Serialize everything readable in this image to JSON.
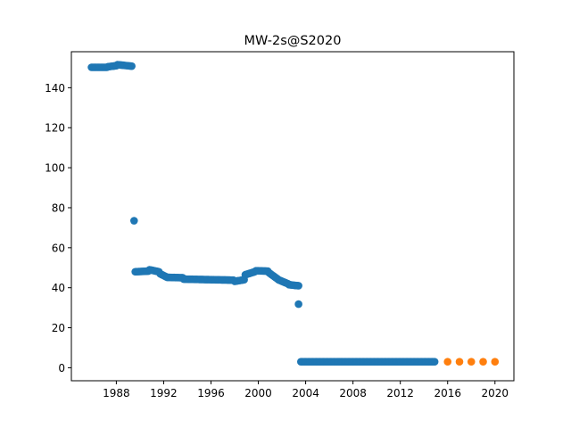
{
  "chart_data": {
    "type": "scatter",
    "title": "MW-2s@S2020",
    "xlabel": "",
    "ylabel": "",
    "xlim": [
      1984.2,
      2021.6
    ],
    "ylim": [
      -6.5,
      158
    ],
    "x_ticks": [
      1988,
      1992,
      1996,
      2000,
      2004,
      2008,
      2012,
      2016,
      2020
    ],
    "y_ticks": [
      0,
      20,
      40,
      60,
      80,
      100,
      120,
      140
    ],
    "grid": false,
    "legend": "none",
    "series": [
      {
        "color": "#1f77b4",
        "segments": [
          {
            "x_start": 1985.9,
            "x_end": 1987.2,
            "step": 0.1,
            "y_start": 150.2,
            "y_end": 150.2
          },
          {
            "x_start": 1987.3,
            "x_end": 1988.0,
            "step": 0.1,
            "y_start": 150.5,
            "y_end": 151.0
          },
          {
            "x_start": 1988.1,
            "x_end": 1989.3,
            "step": 0.1,
            "y_start": 151.5,
            "y_end": 150.8
          },
          {
            "x_start": 1989.5,
            "x_end": 1989.5,
            "step": 0.1,
            "y_start": 73.5,
            "y_end": 73.5
          },
          {
            "x_start": 1989.6,
            "x_end": 1990.7,
            "step": 0.1,
            "y_start": 48.0,
            "y_end": 48.3
          },
          {
            "x_start": 1990.8,
            "x_end": 1991.6,
            "step": 0.1,
            "y_start": 49.0,
            "y_end": 48.0
          },
          {
            "x_start": 1991.7,
            "x_end": 1992.2,
            "step": 0.1,
            "y_start": 47.0,
            "y_end": 45.5
          },
          {
            "x_start": 1992.3,
            "x_end": 1993.6,
            "step": 0.1,
            "y_start": 45.2,
            "y_end": 45.0
          },
          {
            "x_start": 1993.7,
            "x_end": 1997.9,
            "step": 0.1,
            "y_start": 44.3,
            "y_end": 43.8
          },
          {
            "x_start": 1998.0,
            "x_end": 1998.8,
            "step": 0.1,
            "y_start": 43.2,
            "y_end": 44.0
          },
          {
            "x_start": 1998.9,
            "x_end": 1999.7,
            "step": 0.1,
            "y_start": 46.5,
            "y_end": 48.0
          },
          {
            "x_start": 1999.8,
            "x_end": 2000.8,
            "step": 0.1,
            "y_start": 48.5,
            "y_end": 48.3
          },
          {
            "x_start": 2000.9,
            "x_end": 2001.6,
            "step": 0.1,
            "y_start": 47.5,
            "y_end": 44.5
          },
          {
            "x_start": 2001.7,
            "x_end": 2002.5,
            "step": 0.1,
            "y_start": 44.0,
            "y_end": 42.0
          },
          {
            "x_start": 2002.6,
            "x_end": 2003.4,
            "step": 0.1,
            "y_start": 41.5,
            "y_end": 41.0
          },
          {
            "x_start": 2003.4,
            "x_end": 2003.4,
            "step": 0.1,
            "y_start": 31.8,
            "y_end": 31.8
          },
          {
            "x_start": 2003.6,
            "x_end": 2014.9,
            "step": 0.1,
            "y_start": 3.0,
            "y_end": 3.0
          }
        ]
      },
      {
        "color": "#ff7f0e",
        "x": [
          2016,
          2017,
          2018,
          2019,
          2020
        ],
        "y": [
          3.0,
          3.0,
          3.0,
          3.0,
          3.0
        ]
      }
    ]
  }
}
